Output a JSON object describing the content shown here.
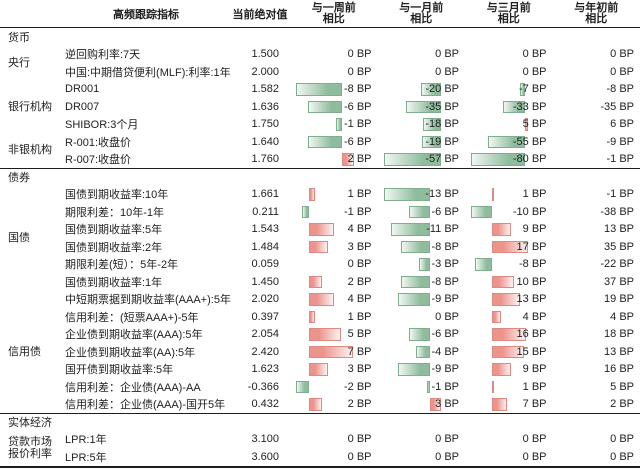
{
  "header": {
    "indicator_col": "高频跟踪指标",
    "value_col": "当前绝对值",
    "comparison_cols": [
      {
        "line1": "与一周前",
        "line2": "相比"
      },
      {
        "line1": "与一月前",
        "line2": "相比"
      },
      {
        "line1": "与三月前",
        "line2": "相比"
      },
      {
        "line1": "与年初前",
        "line2": "相比"
      }
    ]
  },
  "colors": {
    "positive_bar_base": "#ec938c",
    "positive_bar_tip": "#fdf2f1",
    "positive_bar_border": "#de8981",
    "negative_bar_base": "#8fbc9d",
    "negative_bar_tip": "#f0f7f2",
    "negative_bar_border": "#7fae8e",
    "rule_line": "#1c1c1c",
    "text": "#222222"
  },
  "chart_data": {
    "type": "table",
    "unit": "BP",
    "columns": [
      "高频跟踪指标",
      "当前绝对值",
      "与一周前相比",
      "与一月前相比",
      "与三月前相比",
      "与年初前相比"
    ],
    "bar_columns_note": "first three comparison columns show Excel-style gradient data bars; red = positive, green = negative; scaled per section per column",
    "sections": [
      {
        "label": "货币",
        "groups": [
          {
            "label": "央行",
            "rows": [
              {
                "name": "逆回购利率:7天",
                "value": "1.500",
                "changes_bp": [
                  0,
                  0,
                  0,
                  0
                ]
              },
              {
                "name": "中国:中期借贷便利(MLF):利率:1年",
                "value": "2.000",
                "changes_bp": [
                  0,
                  0,
                  0,
                  0
                ]
              }
            ]
          },
          {
            "label": "银行机构",
            "rows": [
              {
                "name": "DR001",
                "value": "1.582",
                "changes_bp": [
                  -8,
                  -20,
                  -7,
                  -8
                ]
              },
              {
                "name": "DR007",
                "value": "1.636",
                "changes_bp": [
                  -6,
                  -35,
                  -33,
                  -35
                ]
              },
              {
                "name": "SHIBOR:3个月",
                "value": "1.750",
                "changes_bp": [
                  -1,
                  -18,
                  5,
                  6
                ]
              }
            ]
          },
          {
            "label": "非银机构",
            "rows": [
              {
                "name": "R-001:收盘价",
                "value": "1.640",
                "changes_bp": [
                  -6,
                  -19,
                  -55,
                  -9
                ]
              },
              {
                "name": "R-007:收盘价",
                "value": "1.760",
                "changes_bp": [
                  2,
                  -57,
                  -80,
                  -1
                ]
              }
            ]
          }
        ]
      },
      {
        "label": "债券",
        "groups": [
          {
            "label": "国债",
            "rows": [
              {
                "name": "国债到期收益率:10年",
                "value": "1.661",
                "changes_bp": [
                  1,
                  -13,
                  1,
                  -1
                ]
              },
              {
                "name": "期限利差：10年-1年",
                "value": "0.211",
                "changes_bp": [
                  -1,
                  -6,
                  -10,
                  -38
                ]
              },
              {
                "name": "国债到期收益率:5年",
                "value": "1.543",
                "changes_bp": [
                  4,
                  -11,
                  9,
                  13
                ]
              },
              {
                "name": "国债到期收益率:2年",
                "value": "1.484",
                "changes_bp": [
                  3,
                  -8,
                  17,
                  35
                ]
              },
              {
                "name": "期限利差(短）：5年-2年",
                "value": "0.059",
                "changes_bp": [
                  0,
                  -3,
                  -8,
                  -22
                ]
              },
              {
                "name": "国债到期收益率:1年",
                "value": "1.450",
                "changes_bp": [
                  2,
                  -8,
                  10,
                  37
                ]
              }
            ]
          },
          {
            "label": "信用债",
            "rows": [
              {
                "name": "中短期票据到期收益率(AAA+):5年",
                "value": "2.020",
                "changes_bp": [
                  4,
                  -9,
                  13,
                  19
                ]
              },
              {
                "name": "信用利差：(短票AAA+)-5年",
                "value": "0.397",
                "changes_bp": [
                  1,
                  0,
                  4,
                  4
                ]
              },
              {
                "name": "企业债到期收益率(AAA):5年",
                "value": "2.054",
                "changes_bp": [
                  5,
                  -6,
                  16,
                  18
                ]
              },
              {
                "name": "企业债到期收益率(AA):5年",
                "value": "2.420",
                "changes_bp": [
                  7,
                  -4,
                  15,
                  13
                ]
              },
              {
                "name": "国开债到期收益率:5年",
                "value": "1.623",
                "changes_bp": [
                  3,
                  -9,
                  9,
                  16
                ]
              },
              {
                "name": "信用利差：企业债(AAA)-AA",
                "value": "-0.366",
                "changes_bp": [
                  -2,
                  -1,
                  1,
                  5
                ]
              },
              {
                "name": "信用利差：企业债(AAA)-国开5年",
                "value": "0.432",
                "changes_bp": [
                  2,
                  3,
                  7,
                  2
                ]
              }
            ]
          }
        ]
      },
      {
        "label": "实体经济",
        "groups": [
          {
            "label": "贷款市场报价利率",
            "rows": [
              {
                "name": "LPR:1年",
                "value": "3.100",
                "changes_bp": [
                  0,
                  0,
                  0,
                  0
                ]
              },
              {
                "name": "LPR:5年",
                "value": "3.600",
                "changes_bp": [
                  0,
                  0,
                  0,
                  0
                ]
              }
            ]
          }
        ]
      }
    ]
  }
}
